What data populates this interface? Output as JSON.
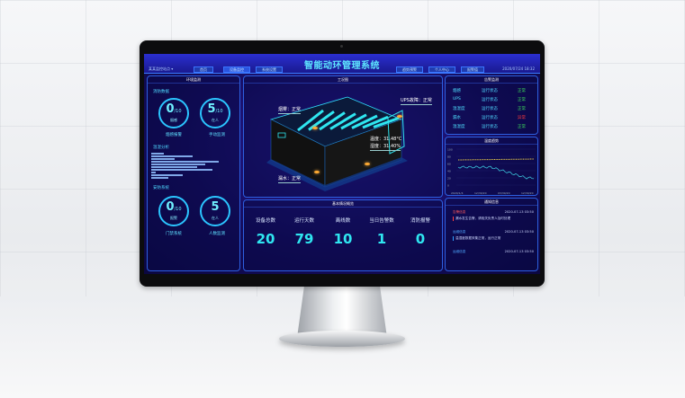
{
  "header": {
    "site": "某某监控站点 ▾",
    "title": "智能动环管理系统",
    "nav": [
      "首页",
      "设备监控",
      "系统设置",
      "趋势预警",
      "个人中心",
      "报警值"
    ],
    "datetime": "2020/07/24 18:32"
  },
  "left": {
    "title": "环境监测",
    "fire": {
      "title": "消防数据",
      "items": [
        {
          "value": "0",
          "total": "/10",
          "sub": "烟感",
          "label": "烟感报警"
        },
        {
          "value": "5",
          "total": "/10",
          "sub": "在人",
          "label": "手动监测"
        }
      ]
    },
    "temp": {
      "title": "温湿分析",
      "bars": [
        14,
        46,
        26,
        75,
        60,
        51,
        68,
        5,
        35,
        19
      ]
    },
    "security": {
      "title": "安防系统",
      "items": [
        {
          "value": "0",
          "total": "/10",
          "sub": "报警",
          "label": "门禁系统"
        },
        {
          "value": "5",
          "total": "",
          "sub": "在人",
          "label": "人数监测"
        }
      ]
    }
  },
  "center": {
    "title": "工况图",
    "labels": {
      "smoke": "烟雾：正常",
      "ups": "UPS故障：正常",
      "temperature": "温度：31.48°C",
      "humidity": "湿度：31.40%",
      "leak": "漏水：正常"
    },
    "overview": {
      "title": "基本情况概览",
      "stats": [
        {
          "label": "设备总数",
          "value": "20"
        },
        {
          "label": "运行天数",
          "value": "79"
        },
        {
          "label": "离线数",
          "value": "10"
        },
        {
          "label": "当日告警数",
          "value": "1"
        },
        {
          "label": "消防报警",
          "value": "0"
        }
      ]
    }
  },
  "right": {
    "alarm_title": "告警监测",
    "rows": [
      {
        "name": "烟感",
        "state": "运行状态",
        "status": "正常"
      },
      {
        "name": "UPS",
        "state": "运行状态",
        "status": "正常"
      },
      {
        "name": "温湿度",
        "state": "运行状态",
        "status": "正常"
      },
      {
        "name": "漏水",
        "state": "运行状态",
        "status": "异常"
      },
      {
        "name": "温湿度",
        "state": "运行状态",
        "status": "正常"
      }
    ],
    "trend": {
      "title": "温度趋势",
      "yticks": [
        "100",
        "80",
        "60",
        "40",
        "20",
        "0"
      ],
      "xticks": [
        "2020/1/4",
        "12/30/20",
        "03/30/20",
        "12/30/20"
      ]
    },
    "notice": {
      "title": "通知信息",
      "items": [
        {
          "tag": "告警信息",
          "time": "2020-07-13 03:50",
          "text": "漏水发生告警，请相关负责人及时处理"
        },
        {
          "tag": "运维信息",
          "time": "2020-07-13 03:50",
          "text": "温湿度数据采集正常，运行正常"
        },
        {
          "tag": "运维信息",
          "time": "2020-07-13 03:50",
          "text": ""
        }
      ]
    }
  },
  "colors": {
    "accent": "#2fe6f0",
    "normal": "#3ddc5a",
    "error": "#ff3b3b"
  }
}
